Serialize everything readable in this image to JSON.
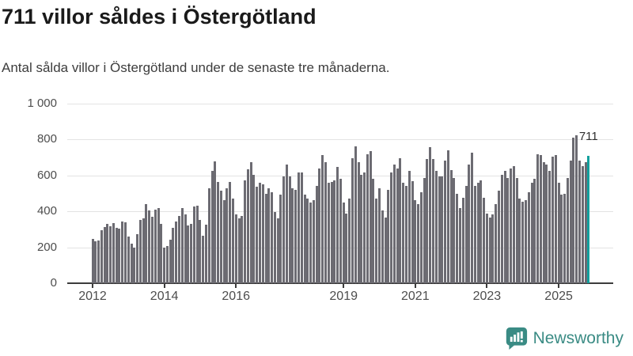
{
  "header": {
    "title": "711 villor såldes i Östergötland",
    "subtitle": "Antal sålda villor i Östergötland under de senaste tre månaderna."
  },
  "chart_data": {
    "type": "bar",
    "title": "711 villor såldes i Östergötland",
    "xlabel": "",
    "ylabel": "",
    "x_start": "2012-01",
    "x_frequency": "monthly",
    "ylim": [
      0,
      1000
    ],
    "ytick_values": [
      0,
      200,
      400,
      600,
      800,
      1000
    ],
    "ytick_labels": [
      "0",
      "200",
      "400",
      "600",
      "800",
      "1 000"
    ],
    "xtick_years": [
      2012,
      2014,
      2016,
      2019,
      2021,
      2023,
      2025
    ],
    "grid": "horizontal",
    "legend": "none",
    "values": [
      247,
      234,
      237,
      294,
      312,
      329,
      316,
      334,
      309,
      304,
      345,
      338,
      262,
      220,
      198,
      272,
      353,
      360,
      441,
      404,
      372,
      412,
      419,
      331,
      198,
      206,
      243,
      309,
      345,
      375,
      419,
      382,
      323,
      331,
      426,
      434,
      353,
      265,
      326,
      529,
      625,
      679,
      566,
      514,
      463,
      529,
      566,
      470,
      382,
      360,
      375,
      573,
      635,
      676,
      603,
      537,
      559,
      551,
      500,
      529,
      507,
      397,
      360,
      493,
      595,
      662,
      595,
      529,
      522,
      617,
      617,
      493,
      470,
      448,
      463,
      544,
      640,
      713,
      676,
      559,
      566,
      573,
      647,
      581,
      448,
      390,
      470,
      698,
      764,
      676,
      603,
      617,
      720,
      738,
      581,
      470,
      529,
      404,
      368,
      522,
      617,
      662,
      640,
      698,
      559,
      544,
      625,
      570,
      463,
      441,
      507,
      588,
      691,
      757,
      691,
      625,
      595,
      595,
      684,
      742,
      632,
      588,
      500,
      419,
      478,
      544,
      662,
      728,
      540,
      559,
      573,
      478,
      390,
      368,
      382,
      441,
      514,
      603,
      625,
      588,
      640,
      654,
      588,
      470,
      456,
      463,
      507,
      559,
      581,
      720,
      713,
      676,
      662,
      625,
      706,
      713,
      559,
      493,
      500,
      588,
      684,
      809,
      826,
      684,
      654,
      676,
      711
    ],
    "highlight_last": true,
    "last_value_label": "711"
  },
  "colors": {
    "bar": "#6c6b72",
    "highlight": "#13a09d",
    "brand": "#3a8b84"
  },
  "footer": {
    "brand": "Newsworthy"
  }
}
